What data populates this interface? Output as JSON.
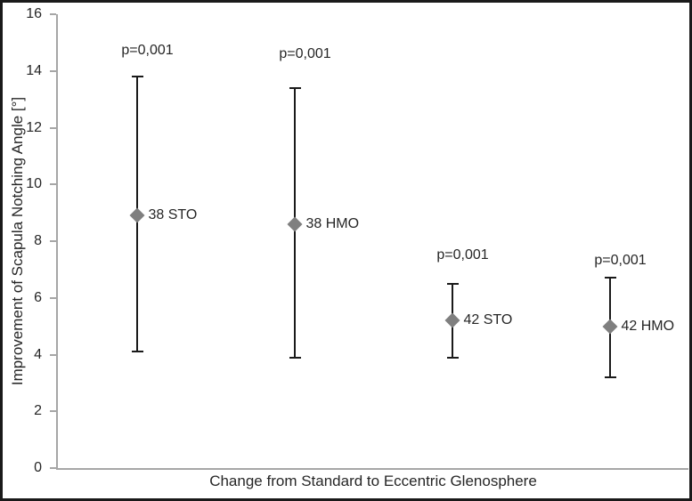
{
  "chart_data": {
    "type": "scatter",
    "title": "",
    "xlabel": "Change from Standard to Eccentric Glenosphere",
    "ylabel": "Improvement of Scapula Notching Angle [°]",
    "ylim": [
      0,
      16
    ],
    "yticks": [
      0,
      2,
      4,
      6,
      8,
      10,
      12,
      14,
      16
    ],
    "grid": false,
    "legend": "none",
    "marker": "diamond",
    "points": [
      {
        "label": "38 STO",
        "mean": 8.9,
        "upper": 13.8,
        "lower": 4.1,
        "p_label": "p=0,001",
        "p_label_y": 14.7
      },
      {
        "label": "38 HMO",
        "mean": 8.6,
        "upper": 13.4,
        "lower": 3.9,
        "p_label": "p=0,001",
        "p_label_y": 14.6
      },
      {
        "label": "42 STO",
        "mean": 5.2,
        "upper": 6.5,
        "lower": 3.9,
        "p_label": "p=0,001",
        "p_label_y": 7.5
      },
      {
        "label": "42 HMO",
        "mean": 5.0,
        "upper": 6.7,
        "lower": 3.2,
        "p_label": "p=0,001",
        "p_label_y": 7.3
      }
    ],
    "colors": {
      "marker": "#7f7f7f",
      "error_bar": "#1a1a1a",
      "axis_line": "#a6a6a6",
      "text": "#262626",
      "figure_border": "#1a1a1a",
      "background": "#ffffff"
    }
  }
}
